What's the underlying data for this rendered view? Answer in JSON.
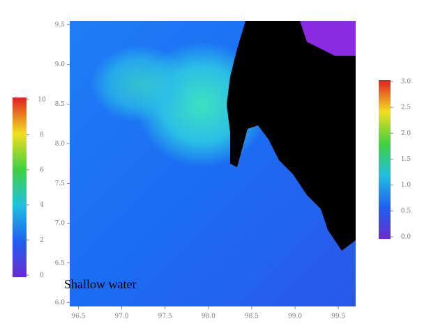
{
  "chart_data": {
    "type": "heatmap",
    "annotation": "Shallow water",
    "xlim": [
      96.4,
      99.7
    ],
    "xticks": [
      96.5,
      {
        "value": 97.0,
        "label": "97.0"
      },
      97.5,
      {
        "value": 98.0,
        "label": "98.0"
      },
      98.5,
      {
        "value": 99.0,
        "label": "99.0"
      },
      99.5
    ],
    "ylim": [
      5.95,
      9.55
    ],
    "yticks": [
      9.5,
      {
        "value": 9.0,
        "label": "9.0"
      },
      8.5,
      {
        "value": 8.0,
        "label": "8.0"
      },
      7.5,
      {
        "value": 7.0,
        "label": "7.0"
      },
      6.5,
      {
        "value": 6.0,
        "label": "6.0"
      }
    ],
    "colorbars": [
      {
        "lim": [
          0,
          10
        ],
        "ticks": [
          0,
          2,
          4,
          6,
          8,
          10
        ]
      },
      {
        "lim": [
          0,
          3
        ],
        "ticks": [
          {
            "value": 0,
            "label": "0.0"
          },
          0.5,
          {
            "value": 1,
            "label": "1.0"
          },
          1.5,
          {
            "value": 2,
            "label": "2.0"
          },
          2.5,
          {
            "value": 3,
            "label": "3.0"
          }
        ]
      }
    ]
  }
}
